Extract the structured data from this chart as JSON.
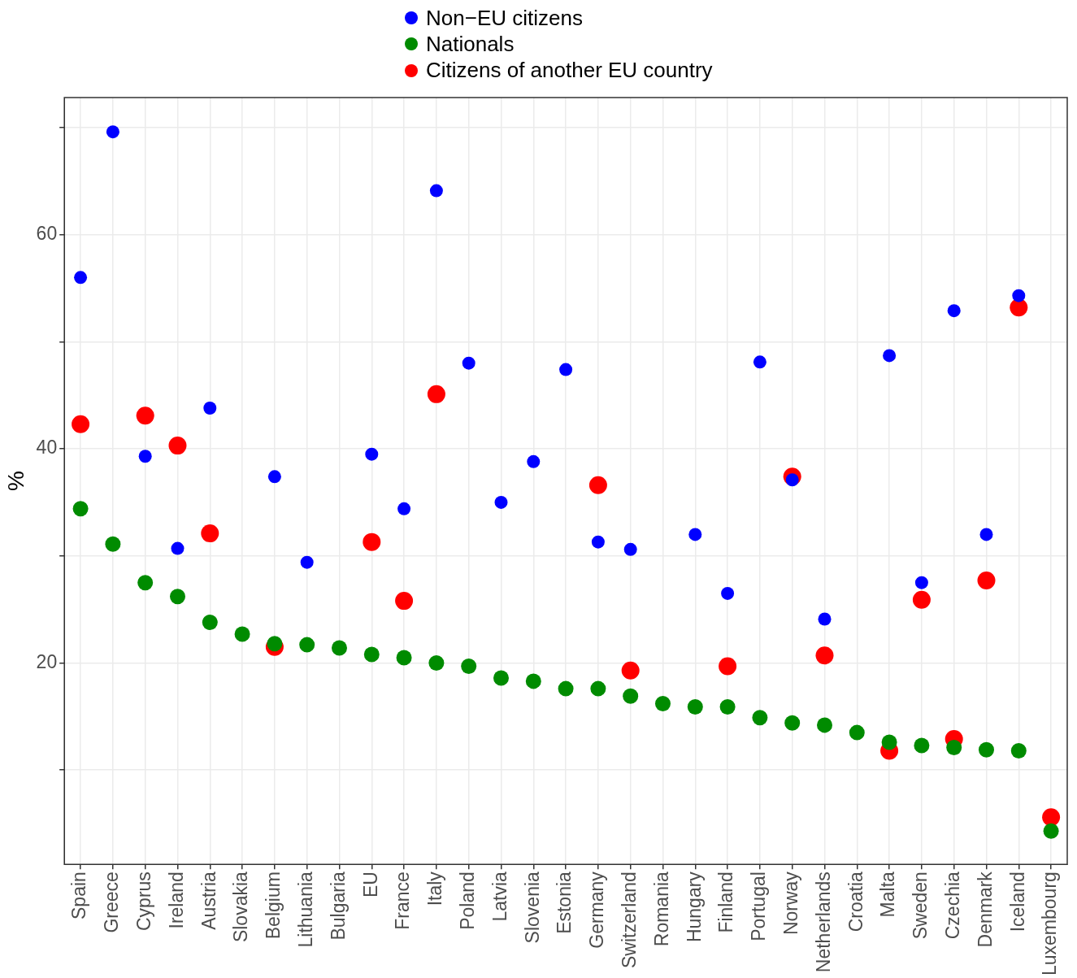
{
  "chart_data": {
    "type": "scatter",
    "ylabel": "%",
    "categories": [
      "Spain",
      "Greece",
      "Cyprus",
      "Ireland",
      "Austria",
      "Slovakia",
      "Belgium",
      "Lithuania",
      "Bulgaria",
      "EU",
      "France",
      "Italy",
      "Poland",
      "Latvia",
      "Slovenia",
      "Estonia",
      "Germany",
      "Switzerland",
      "Romania",
      "Hungary",
      "Finland",
      "Portugal",
      "Norway",
      "Netherlands",
      "Croatia",
      "Malta",
      "Sweden",
      "Czechia",
      "Denmark",
      "Iceland",
      "Luxembourg"
    ],
    "series": [
      {
        "name": "Non−EU citizens",
        "color": "#0000ff",
        "values": [
          56.0,
          69.6,
          39.3,
          30.7,
          43.8,
          null,
          37.4,
          29.4,
          null,
          39.5,
          34.4,
          64.1,
          48.0,
          35.0,
          38.8,
          47.4,
          31.3,
          30.6,
          null,
          32.0,
          26.5,
          48.1,
          37.1,
          24.1,
          null,
          48.7,
          27.5,
          52.9,
          32.0,
          54.3,
          null
        ]
      },
      {
        "name": "Nationals",
        "color": "#008b00",
        "values": [
          34.4,
          31.1,
          27.5,
          26.2,
          23.8,
          22.7,
          21.8,
          21.7,
          21.4,
          20.8,
          20.5,
          20.0,
          19.7,
          18.6,
          18.3,
          17.6,
          17.6,
          16.9,
          16.2,
          15.9,
          15.9,
          14.9,
          14.4,
          14.2,
          13.5,
          12.6,
          12.3,
          12.1,
          11.9,
          11.8,
          4.3
        ]
      },
      {
        "name": "Citizens of another EU country",
        "color": "#ff0000",
        "values": [
          42.3,
          null,
          43.1,
          40.3,
          32.1,
          null,
          21.5,
          null,
          null,
          31.3,
          25.8,
          45.1,
          null,
          null,
          null,
          null,
          36.6,
          19.3,
          null,
          null,
          19.7,
          null,
          37.4,
          20.7,
          null,
          11.8,
          25.9,
          12.9,
          27.7,
          53.2,
          5.6
        ]
      }
    ],
    "ylim": [
      1.2,
      72.8
    ],
    "yticks": [
      {
        "value": 10,
        "label": null
      },
      20,
      {
        "value": 30,
        "label": null
      },
      40,
      {
        "value": 50,
        "label": null
      },
      60,
      {
        "value": 70,
        "label": null
      }
    ],
    "grid": true,
    "legend": "top",
    "marker": "circle"
  }
}
